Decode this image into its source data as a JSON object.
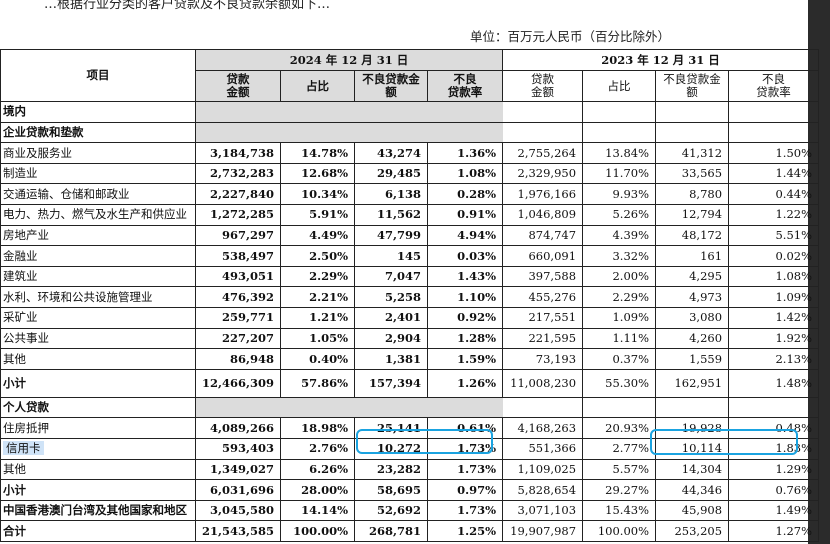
{
  "top_text": "…根据行业分类的客户贷款及不良贷款余额如下…",
  "unit_note": "单位：百万元人民币（百分比除外）",
  "header": {
    "item": "项目",
    "period_2024": "2024 年 12 月 31 日",
    "period_2023": "2023 年 12 月 31 日",
    "cols": [
      "贷款\n金额",
      "占比",
      "不良贷款金\n额",
      "不良\n贷款率"
    ]
  },
  "sections": {
    "domestic": "境内",
    "corporate": "企业贷款和垫款",
    "personal": "个人贷款"
  },
  "corporate_rows": [
    {
      "label": "商业及服务业",
      "v": [
        "3,184,738",
        "14.78%",
        "43,274",
        "1.36%",
        "2,755,264",
        "13.84%",
        "41,312",
        "1.50%"
      ]
    },
    {
      "label": "制造业",
      "v": [
        "2,732,283",
        "12.68%",
        "29,485",
        "1.08%",
        "2,329,950",
        "11.70%",
        "33,565",
        "1.44%"
      ]
    },
    {
      "label": "交通运输、仓储和邮政业",
      "v": [
        "2,227,840",
        "10.34%",
        "6,138",
        "0.28%",
        "1,976,166",
        "9.93%",
        "8,780",
        "0.44%"
      ]
    },
    {
      "label": "电力、热力、燃气及水生产和供应业",
      "v": [
        "1,272,285",
        "5.91%",
        "11,562",
        "0.91%",
        "1,046,809",
        "5.26%",
        "12,794",
        "1.22%"
      ]
    },
    {
      "label": "房地产业",
      "v": [
        "967,297",
        "4.49%",
        "47,799",
        "4.94%",
        "874,747",
        "4.39%",
        "48,172",
        "5.51%"
      ]
    },
    {
      "label": "金融业",
      "v": [
        "538,497",
        "2.50%",
        "145",
        "0.03%",
        "660,091",
        "3.32%",
        "161",
        "0.02%"
      ]
    },
    {
      "label": "建筑业",
      "v": [
        "493,051",
        "2.29%",
        "7,047",
        "1.43%",
        "397,588",
        "2.00%",
        "4,295",
        "1.08%"
      ]
    },
    {
      "label": "水利、环境和公共设施管理业",
      "v": [
        "476,392",
        "2.21%",
        "5,258",
        "1.10%",
        "455,276",
        "2.29%",
        "4,973",
        "1.09%"
      ]
    },
    {
      "label": "采矿业",
      "v": [
        "259,771",
        "1.21%",
        "2,401",
        "0.92%",
        "217,551",
        "1.09%",
        "3,080",
        "1.42%"
      ]
    },
    {
      "label": "公共事业",
      "v": [
        "227,207",
        "1.05%",
        "2,904",
        "1.28%",
        "221,595",
        "1.11%",
        "4,260",
        "1.92%"
      ]
    },
    {
      "label": "其他",
      "v": [
        "86,948",
        "0.40%",
        "1,381",
        "1.59%",
        "73,193",
        "0.37%",
        "1,559",
        "2.13%"
      ]
    }
  ],
  "corporate_subtotal": {
    "label": "小计",
    "v": [
      "12,466,309",
      "57.86%",
      "157,394",
      "1.26%",
      "11,008,230",
      "55.30%",
      "162,951",
      "1.48%"
    ]
  },
  "personal_rows": [
    {
      "label": "住房抵押",
      "v": [
        "4,089,266",
        "18.98%",
        "25,141",
        "0.61%",
        "4,168,263",
        "20.93%",
        "19,928",
        "0.48%"
      ]
    },
    {
      "label": "信用卡",
      "v": [
        "593,403",
        "2.76%",
        "10,272",
        "1.73%",
        "551,366",
        "2.77%",
        "10,114",
        "1.83%"
      ]
    },
    {
      "label": "其他",
      "v": [
        "1,349,027",
        "6.26%",
        "23,282",
        "1.73%",
        "1,109,025",
        "5.57%",
        "14,304",
        "1.29%"
      ]
    }
  ],
  "personal_subtotal": {
    "label": "小计",
    "v": [
      "6,031,696",
      "28.00%",
      "58,695",
      "0.97%",
      "5,828,654",
      "29.27%",
      "44,346",
      "0.76%"
    ]
  },
  "overseas": {
    "label": "中国香港澳门台湾及其他国家和地区",
    "v": [
      "3,045,580",
      "14.14%",
      "52,692",
      "1.73%",
      "3,071,103",
      "15.43%",
      "45,908",
      "1.49%"
    ]
  },
  "total": {
    "label": "合计",
    "v": [
      "21,543,585",
      "100.00%",
      "268,781",
      "1.25%",
      "19,907,987",
      "100.00%",
      "253,205",
      "1.27%"
    ]
  },
  "highlight_color": "#1aa3e0"
}
